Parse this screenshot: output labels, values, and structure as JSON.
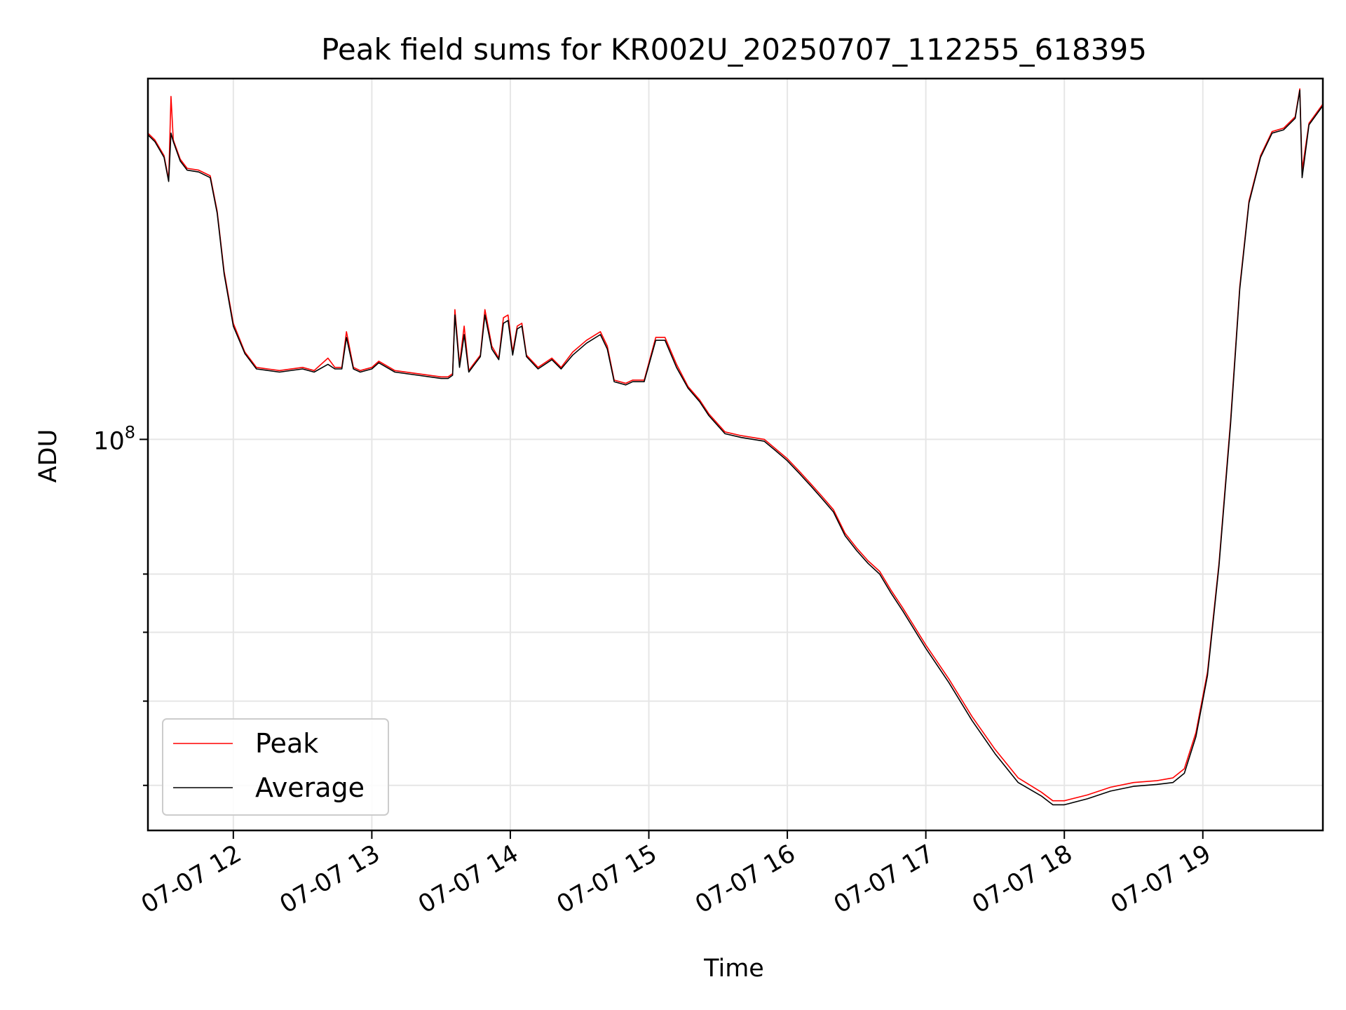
{
  "chart_data": {
    "type": "line",
    "title": "Peak field sums for KR002U_20250707_112255_618395",
    "xlabel": "Time",
    "ylabel": "ADU",
    "y_scale": "log",
    "x_range": [
      "2025-07-07 11:23",
      "2025-07-07 19:52"
    ],
    "ylim": [
      35500000,
      260000000
    ],
    "grid": true,
    "legend_position": "lower-left",
    "x_ticks": [
      "07-07 12",
      "07-07 13",
      "07-07 14",
      "07-07 15",
      "07-07 16",
      "07-07 17",
      "07-07 18",
      "07-07 19"
    ],
    "y_ticks": [
      {
        "value": 100000000,
        "label_base": "10",
        "label_exp": "8"
      },
      {
        "value": 40000000
      },
      {
        "value": 50000000
      },
      {
        "value": 60000000
      },
      {
        "value": 70000000
      }
    ],
    "series": [
      {
        "name": "Peak",
        "color": "#ff0000",
        "x": [
          "2025-07-07 11:23",
          "2025-07-07 11:26",
          "2025-07-07 11:30",
          "2025-07-07 11:32",
          "2025-07-07 11:33",
          "2025-07-07 11:34",
          "2025-07-07 11:37",
          "2025-07-07 11:40",
          "2025-07-07 11:45",
          "2025-07-07 11:50",
          "2025-07-07 11:53",
          "2025-07-07 11:56",
          "2025-07-07 12:00",
          "2025-07-07 12:05",
          "2025-07-07 12:10",
          "2025-07-07 12:20",
          "2025-07-07 12:30",
          "2025-07-07 12:35",
          "2025-07-07 12:41",
          "2025-07-07 12:44",
          "2025-07-07 12:47",
          "2025-07-07 12:49",
          "2025-07-07 12:52",
          "2025-07-07 12:55",
          "2025-07-07 13:00",
          "2025-07-07 13:03",
          "2025-07-07 13:10",
          "2025-07-07 13:20",
          "2025-07-07 13:30",
          "2025-07-07 13:33",
          "2025-07-07 13:35",
          "2025-07-07 13:36",
          "2025-07-07 13:38",
          "2025-07-07 13:40",
          "2025-07-07 13:42",
          "2025-07-07 13:44",
          "2025-07-07 13:47",
          "2025-07-07 13:49",
          "2025-07-07 13:52",
          "2025-07-07 13:55",
          "2025-07-07 13:57",
          "2025-07-07 13:59",
          "2025-07-07 14:01",
          "2025-07-07 14:03",
          "2025-07-07 14:05",
          "2025-07-07 14:07",
          "2025-07-07 14:12",
          "2025-07-07 14:18",
          "2025-07-07 14:22",
          "2025-07-07 14:27",
          "2025-07-07 14:33",
          "2025-07-07 14:39",
          "2025-07-07 14:42",
          "2025-07-07 14:45",
          "2025-07-07 14:50",
          "2025-07-07 14:53",
          "2025-07-07 14:58",
          "2025-07-07 15:03",
          "2025-07-07 15:07",
          "2025-07-07 15:12",
          "2025-07-07 15:17",
          "2025-07-07 15:22",
          "2025-07-07 15:26",
          "2025-07-07 15:33",
          "2025-07-07 15:40",
          "2025-07-07 15:50",
          "2025-07-07 15:55",
          "2025-07-07 16:00",
          "2025-07-07 16:05",
          "2025-07-07 16:10",
          "2025-07-07 16:15",
          "2025-07-07 16:20",
          "2025-07-07 16:25",
          "2025-07-07 16:30",
          "2025-07-07 16:35",
          "2025-07-07 16:40",
          "2025-07-07 16:45",
          "2025-07-07 16:50",
          "2025-07-07 17:00",
          "2025-07-07 17:10",
          "2025-07-07 17:20",
          "2025-07-07 17:30",
          "2025-07-07 17:40",
          "2025-07-07 17:50",
          "2025-07-07 17:55",
          "2025-07-07 18:00",
          "2025-07-07 18:10",
          "2025-07-07 18:20",
          "2025-07-07 18:30",
          "2025-07-07 18:40",
          "2025-07-07 18:47",
          "2025-07-07 18:52",
          "2025-07-07 18:57",
          "2025-07-07 19:02",
          "2025-07-07 19:07",
          "2025-07-07 19:12",
          "2025-07-07 19:16",
          "2025-07-07 19:20",
          "2025-07-07 19:25",
          "2025-07-07 19:30",
          "2025-07-07 19:35",
          "2025-07-07 19:40",
          "2025-07-07 19:42",
          "2025-07-07 19:43",
          "2025-07-07 19:46",
          "2025-07-07 19:52"
        ],
        "y": [
          225000000,
          221000000,
          212000000,
          199000000,
          248000000,
          221000000,
          210000000,
          205000000,
          204000000,
          201000000,
          183000000,
          156000000,
          136000000,
          126000000,
          121000000,
          120000000,
          121000000,
          120000000,
          124000000,
          121000000,
          121000000,
          133000000,
          121000000,
          120000000,
          121000000,
          123000000,
          120000000,
          119000000,
          118000000,
          118000000,
          119000000,
          141000000,
          122000000,
          135000000,
          120000000,
          122000000,
          125000000,
          141000000,
          128000000,
          124000000,
          138000000,
          139000000,
          126000000,
          135000000,
          136000000,
          125000000,
          121000000,
          124000000,
          121000000,
          126000000,
          130000000,
          133000000,
          128000000,
          117000000,
          116000000,
          117000000,
          117000000,
          131000000,
          131000000,
          122000000,
          115000000,
          111000000,
          107000000,
          102000000,
          101000000,
          100000000,
          97500000,
          95000000,
          92000000,
          89000000,
          86000000,
          83000000,
          78000000,
          75000000,
          72500000,
          70500000,
          67000000,
          64000000,
          58000000,
          53000000,
          48000000,
          44000000,
          40800000,
          39300000,
          38400000,
          38400000,
          39000000,
          39800000,
          40300000,
          40500000,
          40800000,
          41800000,
          46000000,
          54000000,
          72000000,
          105000000,
          150000000,
          188000000,
          212000000,
          226000000,
          228000000,
          235000000,
          253000000,
          204000000,
          231000000,
          243000000
        ]
      },
      {
        "name": "Average",
        "color": "#000000",
        "x": [
          "2025-07-07 11:23",
          "2025-07-07 11:26",
          "2025-07-07 11:30",
          "2025-07-07 11:32",
          "2025-07-07 11:33",
          "2025-07-07 11:34",
          "2025-07-07 11:37",
          "2025-07-07 11:40",
          "2025-07-07 11:45",
          "2025-07-07 11:50",
          "2025-07-07 11:53",
          "2025-07-07 11:56",
          "2025-07-07 12:00",
          "2025-07-07 12:05",
          "2025-07-07 12:10",
          "2025-07-07 12:20",
          "2025-07-07 12:30",
          "2025-07-07 12:35",
          "2025-07-07 12:41",
          "2025-07-07 12:44",
          "2025-07-07 12:47",
          "2025-07-07 12:49",
          "2025-07-07 12:52",
          "2025-07-07 12:55",
          "2025-07-07 13:00",
          "2025-07-07 13:03",
          "2025-07-07 13:10",
          "2025-07-07 13:20",
          "2025-07-07 13:30",
          "2025-07-07 13:33",
          "2025-07-07 13:35",
          "2025-07-07 13:36",
          "2025-07-07 13:38",
          "2025-07-07 13:40",
          "2025-07-07 13:42",
          "2025-07-07 13:44",
          "2025-07-07 13:47",
          "2025-07-07 13:49",
          "2025-07-07 13:52",
          "2025-07-07 13:55",
          "2025-07-07 13:57",
          "2025-07-07 13:59",
          "2025-07-07 14:01",
          "2025-07-07 14:03",
          "2025-07-07 14:05",
          "2025-07-07 14:07",
          "2025-07-07 14:12",
          "2025-07-07 14:18",
          "2025-07-07 14:22",
          "2025-07-07 14:27",
          "2025-07-07 14:33",
          "2025-07-07 14:39",
          "2025-07-07 14:42",
          "2025-07-07 14:45",
          "2025-07-07 14:50",
          "2025-07-07 14:53",
          "2025-07-07 14:58",
          "2025-07-07 15:03",
          "2025-07-07 15:07",
          "2025-07-07 15:12",
          "2025-07-07 15:17",
          "2025-07-07 15:22",
          "2025-07-07 15:26",
          "2025-07-07 15:33",
          "2025-07-07 15:40",
          "2025-07-07 15:50",
          "2025-07-07 15:55",
          "2025-07-07 16:00",
          "2025-07-07 16:05",
          "2025-07-07 16:10",
          "2025-07-07 16:15",
          "2025-07-07 16:20",
          "2025-07-07 16:25",
          "2025-07-07 16:30",
          "2025-07-07 16:35",
          "2025-07-07 16:40",
          "2025-07-07 16:45",
          "2025-07-07 16:50",
          "2025-07-07 17:00",
          "2025-07-07 17:10",
          "2025-07-07 17:20",
          "2025-07-07 17:30",
          "2025-07-07 17:40",
          "2025-07-07 17:50",
          "2025-07-07 17:55",
          "2025-07-07 18:00",
          "2025-07-07 18:10",
          "2025-07-07 18:20",
          "2025-07-07 18:30",
          "2025-07-07 18:40",
          "2025-07-07 18:47",
          "2025-07-07 18:52",
          "2025-07-07 18:57",
          "2025-07-07 19:02",
          "2025-07-07 19:07",
          "2025-07-07 19:12",
          "2025-07-07 19:16",
          "2025-07-07 19:20",
          "2025-07-07 19:25",
          "2025-07-07 19:30",
          "2025-07-07 19:35",
          "2025-07-07 19:40",
          "2025-07-07 19:42",
          "2025-07-07 19:43",
          "2025-07-07 19:46",
          "2025-07-07 19:52"
        ],
        "y": [
          224000000,
          220000000,
          211000000,
          198000000,
          225000000,
          220000000,
          209000000,
          204000000,
          203000000,
          200000000,
          182000000,
          155000000,
          135000000,
          125500000,
          120500000,
          119500000,
          120500000,
          119500000,
          122000000,
          120500000,
          120500000,
          131000000,
          120500000,
          119500000,
          120500000,
          122500000,
          119500000,
          118500000,
          117500000,
          117500000,
          118500000,
          139000000,
          121000000,
          132000000,
          119500000,
          121500000,
          124500000,
          139000000,
          127000000,
          123500000,
          136000000,
          137000000,
          125000000,
          134000000,
          135000000,
          124500000,
          120500000,
          123500000,
          120500000,
          125000000,
          129000000,
          132000000,
          127000000,
          116500000,
          115500000,
          116500000,
          116500000,
          130000000,
          130000000,
          121000000,
          114500000,
          110500000,
          106500000,
          101500000,
          100500000,
          99500000,
          97000000,
          94500000,
          91500000,
          88500000,
          85500000,
          82500000,
          77500000,
          74500000,
          72000000,
          70000000,
          66500000,
          63500000,
          57500000,
          52500000,
          47500000,
          43500000,
          40300000,
          38900000,
          38000000,
          38000000,
          38600000,
          39400000,
          39900000,
          40100000,
          40300000,
          41300000,
          45500000,
          53500000,
          71500000,
          104000000,
          149000000,
          187000000,
          211000000,
          225000000,
          227000000,
          234000000,
          252000000,
          200000000,
          230000000,
          242000000
        ]
      }
    ]
  }
}
